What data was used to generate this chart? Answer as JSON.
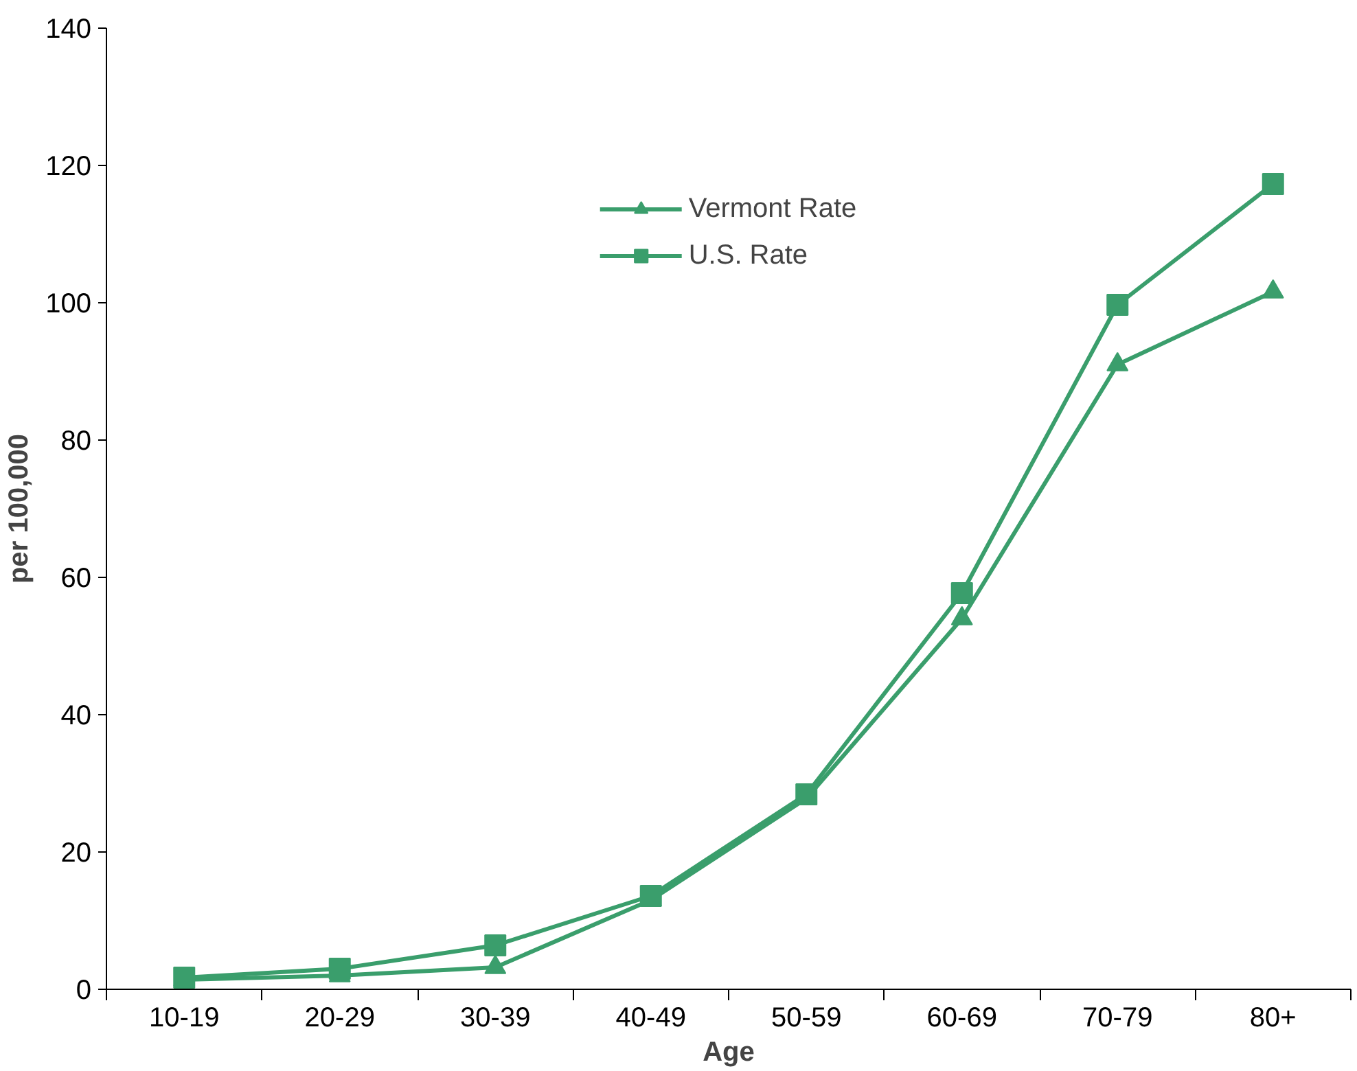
{
  "chart_data": {
    "type": "line",
    "xlabel": "Age",
    "ylabel": "per 100,000",
    "categories": [
      "10-19",
      "20-29",
      "30-39",
      "40-49",
      "50-59",
      "60-69",
      "70-79",
      "80+"
    ],
    "series": [
      {
        "name": "Vermont Rate",
        "color": "#3a9e6c",
        "marker": "triangle",
        "values": [
          1.4,
          2,
          3.2,
          13,
          27.8,
          54,
          91,
          101.6
        ]
      },
      {
        "name": "U.S. Rate",
        "color": "#3a9e6c",
        "marker": "square",
        "values": [
          1.7,
          3,
          6.4,
          13.6,
          28.4,
          57.7,
          99.7,
          117.3
        ]
      }
    ],
    "ylim": [
      0,
      140
    ],
    "yticks": [
      0,
      20,
      40,
      60,
      80,
      100,
      120,
      140
    ],
    "grid": false,
    "legend": "top",
    "line_style": "solid"
  }
}
